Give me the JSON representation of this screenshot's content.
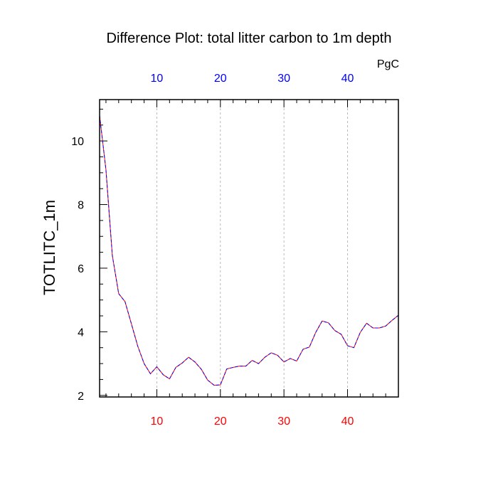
{
  "chart_data": {
    "type": "line",
    "title": "Difference Plot: total litter carbon to 1m depth",
    "units": "PgC",
    "ylabel": "TOTLITC_1m",
    "xlabel": "",
    "xlim": [
      1,
      48
    ],
    "ylim": [
      1.95,
      11.3
    ],
    "x_ticks": [
      10,
      20,
      30,
      40
    ],
    "y_ticks": [
      2,
      4,
      6,
      8,
      10
    ],
    "x_tick_color_bottom": "#ff0000",
    "x_tick_color_top": "#0000ff",
    "grid": "vertical dashed at major x ticks",
    "legend": "none",
    "series": [
      {
        "color_a": "#ff0000",
        "color_b": "#0000ff",
        "style": "dashed",
        "x": [
          1,
          2,
          3,
          4,
          5,
          6,
          7,
          8,
          9,
          10,
          11,
          12,
          13,
          14,
          15,
          16,
          17,
          18,
          19,
          20,
          21,
          22,
          23,
          24,
          25,
          26,
          27,
          28,
          29,
          30,
          31,
          32,
          33,
          34,
          35,
          36,
          37,
          38,
          39,
          40,
          41,
          42,
          43,
          44,
          45,
          46,
          47,
          48
        ],
        "values": [
          10.8,
          9.1,
          6.4,
          5.2,
          4.95,
          4.25,
          3.55,
          3.0,
          2.68,
          2.9,
          2.65,
          2.52,
          2.88,
          3.02,
          3.2,
          3.05,
          2.82,
          2.48,
          2.32,
          2.33,
          2.83,
          2.88,
          2.92,
          2.92,
          3.1,
          3.0,
          3.2,
          3.34,
          3.26,
          3.05,
          3.16,
          3.08,
          3.45,
          3.52,
          3.98,
          4.34,
          4.28,
          4.04,
          3.92,
          3.56,
          3.5,
          3.98,
          4.27,
          4.12,
          4.12,
          4.18,
          4.36,
          4.52
        ]
      }
    ]
  }
}
